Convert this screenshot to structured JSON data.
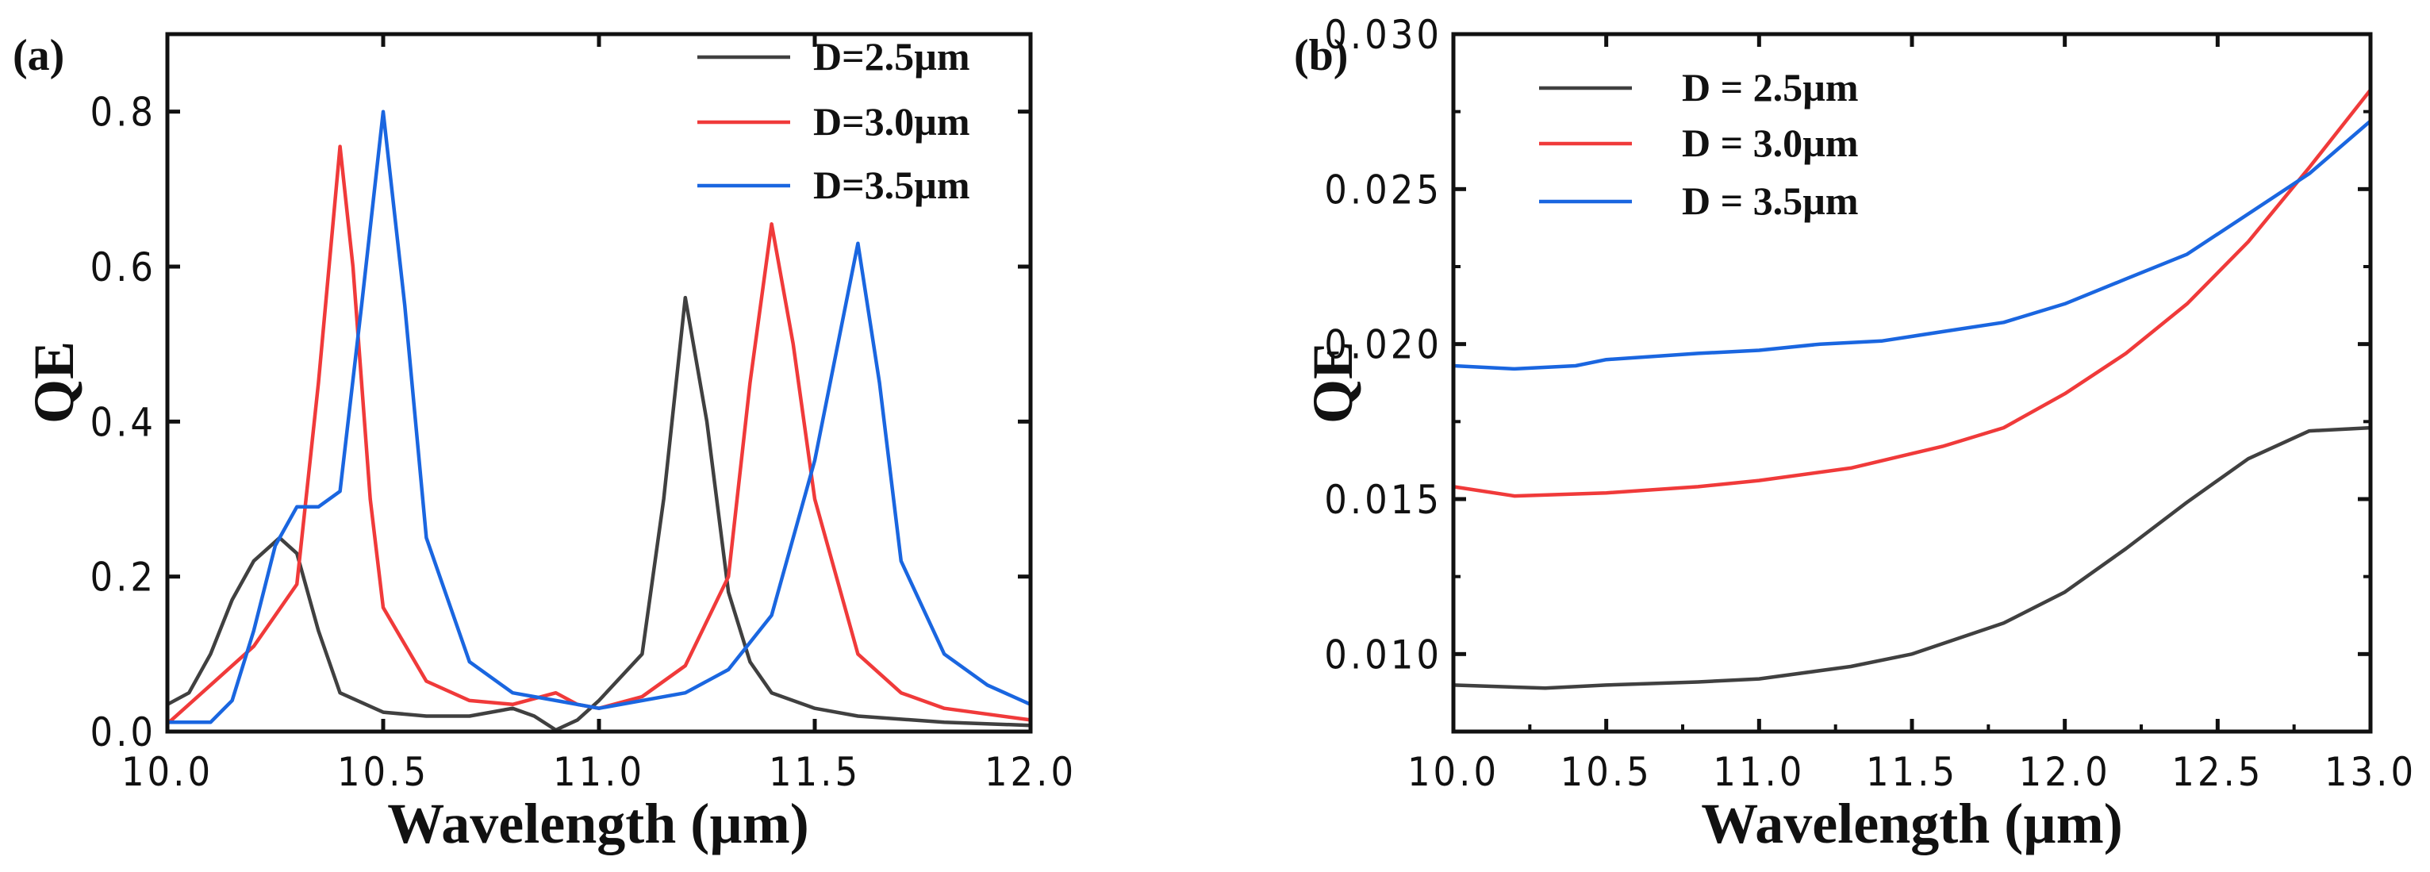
{
  "chart_data": [
    {
      "type": "line",
      "panel_label": "(a)",
      "xlabel": "Wavelength (µm)",
      "ylabel": "QE",
      "xlim": [
        10.0,
        12.0
      ],
      "ylim": [
        0.0,
        0.9
      ],
      "xticks": [
        10.0,
        10.5,
        11.0,
        11.5,
        12.0
      ],
      "xtick_labels": [
        "10.0",
        "10.5",
        "11.0",
        "11.5",
        "12.0"
      ],
      "yticks": [
        0.0,
        0.2,
        0.4,
        0.6,
        0.8
      ],
      "ytick_labels": [
        "0.0",
        "0.2",
        "0.4",
        "0.6",
        "0.8"
      ],
      "legend_position": "top-right",
      "series": [
        {
          "name": "D=2.5µm",
          "color": "#404040",
          "x": [
            10.0,
            10.05,
            10.1,
            10.15,
            10.2,
            10.26,
            10.3,
            10.35,
            10.4,
            10.5,
            10.6,
            10.7,
            10.8,
            10.85,
            10.9,
            10.95,
            11.0,
            11.1,
            11.15,
            11.2,
            11.25,
            11.3,
            11.35,
            11.4,
            11.5,
            11.6,
            11.8,
            12.0
          ],
          "y": [
            0.035,
            0.05,
            0.1,
            0.17,
            0.22,
            0.25,
            0.23,
            0.13,
            0.05,
            0.025,
            0.02,
            0.02,
            0.03,
            0.02,
            0.002,
            0.015,
            0.04,
            0.1,
            0.3,
            0.56,
            0.4,
            0.18,
            0.09,
            0.05,
            0.03,
            0.02,
            0.012,
            0.008
          ]
        },
        {
          "name": "D=3.0µm",
          "color": "#f03a3a",
          "x": [
            10.0,
            10.1,
            10.2,
            10.3,
            10.35,
            10.4,
            10.43,
            10.47,
            10.5,
            10.6,
            10.7,
            10.8,
            10.9,
            10.95,
            11.0,
            11.1,
            11.2,
            11.3,
            11.35,
            11.4,
            11.45,
            11.5,
            11.6,
            11.7,
            11.8,
            12.0
          ],
          "y": [
            0.01,
            0.06,
            0.11,
            0.19,
            0.45,
            0.755,
            0.6,
            0.3,
            0.16,
            0.065,
            0.04,
            0.035,
            0.05,
            0.035,
            0.03,
            0.045,
            0.085,
            0.2,
            0.45,
            0.655,
            0.5,
            0.3,
            0.1,
            0.05,
            0.03,
            0.015
          ]
        },
        {
          "name": "D=3.5µm",
          "color": "#1a66e0",
          "x": [
            10.0,
            10.1,
            10.15,
            10.2,
            10.25,
            10.3,
            10.35,
            10.4,
            10.45,
            10.5,
            10.55,
            10.6,
            10.7,
            10.8,
            10.9,
            11.0,
            11.2,
            11.3,
            11.4,
            11.5,
            11.6,
            11.65,
            11.7,
            11.8,
            11.9,
            12.0
          ],
          "y": [
            0.012,
            0.012,
            0.04,
            0.13,
            0.24,
            0.29,
            0.29,
            0.31,
            0.55,
            0.8,
            0.55,
            0.25,
            0.09,
            0.05,
            0.04,
            0.03,
            0.05,
            0.08,
            0.15,
            0.35,
            0.63,
            0.45,
            0.22,
            0.1,
            0.06,
            0.035
          ]
        }
      ]
    },
    {
      "type": "line",
      "panel_label": "(b)",
      "xlabel": "Wavelength (µm)",
      "ylabel": "QE",
      "xlim": [
        10.0,
        13.0
      ],
      "ylim": [
        0.0075,
        0.03
      ],
      "xticks": [
        10.0,
        10.5,
        11.0,
        11.5,
        12.0,
        12.5,
        13.0
      ],
      "xtick_labels": [
        "10.0",
        "10.5",
        "11.0",
        "11.5",
        "12.0",
        "12.5",
        "13.0"
      ],
      "yticks": [
        0.01,
        0.015,
        0.02,
        0.025,
        0.03
      ],
      "ytick_labels": [
        "0.010",
        "0.015",
        "0.020",
        "0.025",
        "0.030"
      ],
      "legend_position": "top-left",
      "series": [
        {
          "name": "D = 2.5µm",
          "color": "#404040",
          "x": [
            10.0,
            10.3,
            10.5,
            10.8,
            11.0,
            11.3,
            11.5,
            11.8,
            12.0,
            12.2,
            12.4,
            12.6,
            12.8,
            13.0
          ],
          "y": [
            0.009,
            0.0089,
            0.009,
            0.0091,
            0.0092,
            0.0096,
            0.01,
            0.011,
            0.012,
            0.0134,
            0.0149,
            0.0163,
            0.0172,
            0.0173
          ]
        },
        {
          "name": "D = 3.0µm",
          "color": "#f03a3a",
          "x": [
            10.0,
            10.2,
            10.5,
            10.8,
            11.0,
            11.3,
            11.6,
            11.8,
            12.0,
            12.2,
            12.4,
            12.6,
            12.8,
            13.0
          ],
          "y": [
            0.0154,
            0.0151,
            0.0152,
            0.0154,
            0.0156,
            0.016,
            0.0167,
            0.0173,
            0.0184,
            0.0197,
            0.0213,
            0.0233,
            0.0257,
            0.0282
          ]
        },
        {
          "name": "D = 3.5µm",
          "color": "#1a66e0",
          "x": [
            10.0,
            10.2,
            10.4,
            10.5,
            10.8,
            11.0,
            11.2,
            11.4,
            11.6,
            11.8,
            12.0,
            12.2,
            12.4,
            12.6,
            12.8,
            13.0
          ],
          "y": [
            0.0193,
            0.0192,
            0.0193,
            0.0195,
            0.0197,
            0.0198,
            0.02,
            0.0201,
            0.0204,
            0.0207,
            0.0213,
            0.0221,
            0.0229,
            0.0242,
            0.0255,
            0.0272
          ]
        }
      ]
    }
  ]
}
